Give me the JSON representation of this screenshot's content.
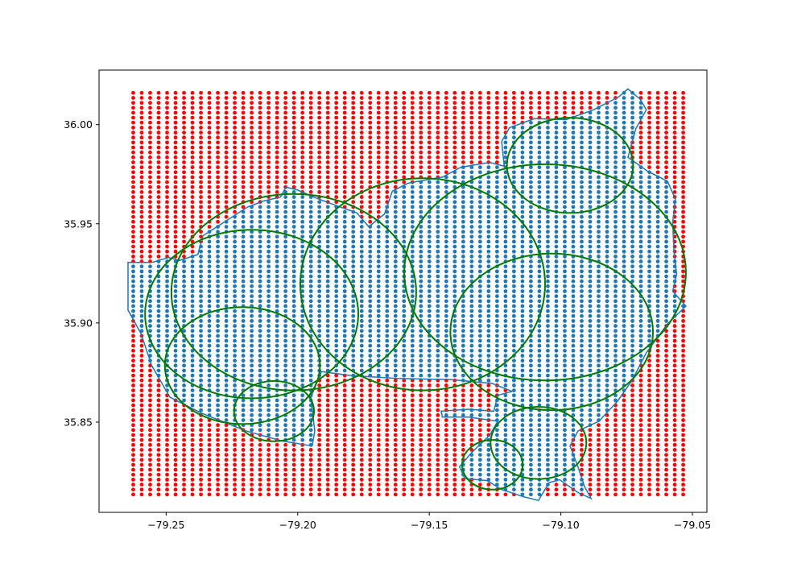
{
  "chart_data": {
    "type": "scatter",
    "title": "",
    "xlabel": "",
    "ylabel": "",
    "xlim": [
      -79.2755,
      -79.0445
    ],
    "ylim": [
      35.8045,
      36.0275
    ],
    "xticks": [
      -79.25,
      -79.2,
      -79.15,
      -79.1,
      -79.05
    ],
    "xtick_labels": [
      "−79.25",
      "−79.20",
      "−79.15",
      "−79.10",
      "−79.05"
    ],
    "yticks": [
      35.85,
      35.9,
      35.95,
      36.0
    ],
    "ytick_labels": [
      "35.85",
      "35.90",
      "35.95",
      "36.00"
    ],
    "grid": false,
    "colors": {
      "outside_points": "#ff0000",
      "inside_points": "#1f77b4",
      "boundary": "#1f77b4",
      "circles": "#007a00",
      "frame": "#000000"
    },
    "grid_points": {
      "x_min": -79.2625,
      "x_max": -79.0535,
      "x_count": 66,
      "y_min": 35.8135,
      "y_max": 36.016,
      "y_count": 82
    },
    "boundary_polygon": [
      [
        -79.2555,
        35.9305
      ],
      [
        -79.249,
        35.933
      ],
      [
        -79.245,
        35.9315
      ],
      [
        -79.238,
        35.9345
      ],
      [
        -79.236,
        35.944
      ],
      [
        -79.233,
        35.9465
      ],
      [
        -79.226,
        35.9525
      ],
      [
        -79.219,
        35.9585
      ],
      [
        -79.213,
        35.9615
      ],
      [
        -79.2065,
        35.9635
      ],
      [
        -79.2045,
        35.9685
      ],
      [
        -79.2,
        35.967
      ],
      [
        -79.193,
        35.963
      ],
      [
        -79.185,
        35.959
      ],
      [
        -79.1775,
        35.9555
      ],
      [
        -79.173,
        35.9485
      ],
      [
        -79.167,
        35.955
      ],
      [
        -79.164,
        35.9665
      ],
      [
        -79.158,
        35.9705
      ],
      [
        -79.145,
        35.9735
      ],
      [
        -79.138,
        35.9785
      ],
      [
        -79.127,
        35.981
      ],
      [
        -79.1215,
        35.979
      ],
      [
        -79.1225,
        35.9915
      ],
      [
        -79.1195,
        35.9985
      ],
      [
        -79.11,
        36.003
      ],
      [
        -79.098,
        36.0025
      ],
      [
        -79.0875,
        36.0075
      ],
      [
        -79.078,
        36.014
      ],
      [
        -79.0745,
        36.018
      ],
      [
        -79.07,
        36.013
      ],
      [
        -79.0675,
        36.0075
      ],
      [
        -79.0715,
        35.998
      ],
      [
        -79.0745,
        35.9835
      ],
      [
        -79.067,
        35.9765
      ],
      [
        -79.0595,
        35.9715
      ],
      [
        -79.0565,
        35.9625
      ],
      [
        -79.0575,
        35.9505
      ],
      [
        -79.057,
        35.9365
      ],
      [
        -79.056,
        35.9245
      ],
      [
        -79.0575,
        35.916
      ],
      [
        -79.0525,
        35.9085
      ],
      [
        -79.0595,
        35.8995
      ],
      [
        -79.0675,
        35.885
      ],
      [
        -79.073,
        35.871
      ],
      [
        -79.0785,
        35.8605
      ],
      [
        -79.0855,
        35.8505
      ],
      [
        -79.0935,
        35.8455
      ],
      [
        -79.0965,
        35.838
      ],
      [
        -79.0935,
        35.8275
      ],
      [
        -79.091,
        35.8175
      ],
      [
        -79.0885,
        35.8115
      ],
      [
        -79.0935,
        35.8145
      ],
      [
        -79.1005,
        35.821
      ],
      [
        -79.1045,
        35.8195
      ],
      [
        -79.1085,
        35.8105
      ],
      [
        -79.1145,
        35.8125
      ],
      [
        -79.1225,
        35.816
      ],
      [
        -79.128,
        35.8205
      ],
      [
        -79.1365,
        35.8215
      ],
      [
        -79.1385,
        35.8275
      ],
      [
        -79.134,
        35.8345
      ],
      [
        -79.127,
        35.8435
      ],
      [
        -79.124,
        35.8505
      ],
      [
        -79.135,
        35.8525
      ],
      [
        -79.145,
        35.8525
      ],
      [
        -79.1455,
        35.8555
      ],
      [
        -79.135,
        35.8565
      ],
      [
        -79.1255,
        35.8555
      ],
      [
        -79.124,
        35.8635
      ],
      [
        -79.1185,
        35.8655
      ],
      [
        -79.126,
        35.8695
      ],
      [
        -79.142,
        35.8715
      ],
      [
        -79.162,
        35.872
      ],
      [
        -79.18,
        35.8735
      ],
      [
        -79.191,
        35.8755
      ],
      [
        -79.195,
        35.8625
      ],
      [
        -79.1935,
        35.8455
      ],
      [
        -79.1945,
        35.838
      ],
      [
        -79.206,
        35.8405
      ],
      [
        -79.2195,
        35.8455
      ],
      [
        -79.2365,
        35.8545
      ],
      [
        -79.2485,
        35.8625
      ],
      [
        -79.2555,
        35.8785
      ],
      [
        -79.2595,
        35.8945
      ],
      [
        -79.2645,
        35.9065
      ],
      [
        -79.2645,
        35.9305
      ],
      [
        -79.2555,
        35.9305
      ]
    ],
    "circles": [
      {
        "cx": -79.2015,
        "cy": 35.9155,
        "rx": 0.0465,
        "ry": 0.0495
      },
      {
        "cx": -79.2175,
        "cy": 35.9045,
        "rx": 0.0405,
        "ry": 0.0425
      },
      {
        "cx": -79.221,
        "cy": 35.8785,
        "rx": 0.0295,
        "ry": 0.0295
      },
      {
        "cx": -79.209,
        "cy": 35.8555,
        "rx": 0.0152,
        "ry": 0.0152
      },
      {
        "cx": -79.1525,
        "cy": 35.9195,
        "rx": 0.0465,
        "ry": 0.0535
      },
      {
        "cx": -79.106,
        "cy": 35.9255,
        "rx": 0.0535,
        "ry": 0.0545
      },
      {
        "cx": -79.0965,
        "cy": 35.9795,
        "rx": 0.024,
        "ry": 0.024
      },
      {
        "cx": -79.1035,
        "cy": 35.8955,
        "rx": 0.0385,
        "ry": 0.0395
      },
      {
        "cx": -79.1085,
        "cy": 35.8395,
        "rx": 0.0182,
        "ry": 0.0182
      },
      {
        "cx": -79.126,
        "cy": 35.8285,
        "rx": 0.0115,
        "ry": 0.0125
      }
    ]
  }
}
